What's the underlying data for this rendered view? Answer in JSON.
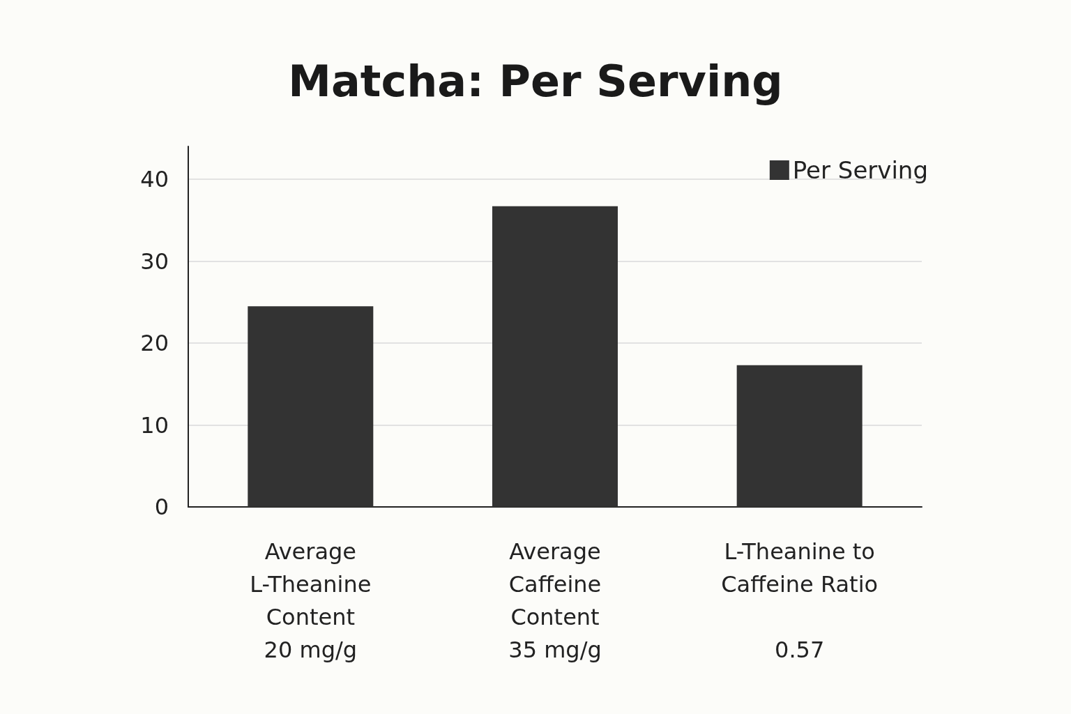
{
  "chart_data": {
    "type": "bar",
    "title": "Matcha: Per Serving",
    "categories": [
      "Average\nL-Theanine\nContent\n20 mg/g",
      "Average\nCaffeine\nContent\n35 mg/g",
      "L-Theanine to\nCaffeine Ratio\n\n0.57"
    ],
    "series": [
      {
        "name": "Per Serving",
        "color": "#333333",
        "values": [
          24.5,
          36.7,
          17.3
        ]
      }
    ],
    "ylim": [
      0,
      44
    ],
    "yticks": [
      0,
      10,
      20,
      30,
      40
    ],
    "grid": "y",
    "legend": "top right"
  }
}
